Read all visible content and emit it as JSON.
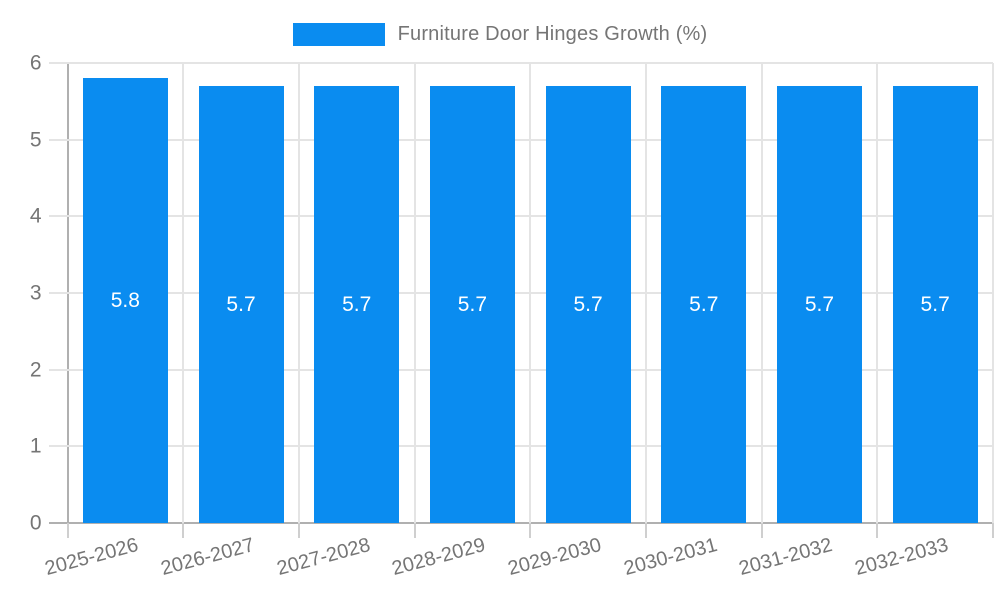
{
  "chart_data": {
    "type": "bar",
    "title": "Furniture Door Hinges Growth (%)",
    "categories": [
      "2025-2026",
      "2026-2027",
      "2027-2028",
      "2028-2029",
      "2029-2030",
      "2030-2031",
      "2031-2032",
      "2032-2033"
    ],
    "values": [
      5.8,
      5.7,
      5.7,
      5.7,
      5.7,
      5.7,
      5.7,
      5.7
    ],
    "value_labels": [
      "5.8",
      "5.7",
      "5.7",
      "5.7",
      "5.7",
      "5.7",
      "5.7",
      "5.7"
    ],
    "xlabel": "",
    "ylabel": "",
    "ylim": [
      0,
      6
    ],
    "yticks": [
      "0",
      "1",
      "2",
      "3",
      "4",
      "5",
      "6"
    ],
    "grid": true,
    "legend_position": "top-center",
    "x_label_rotation_deg": -15
  },
  "colors": {
    "bar": "#0a8cf0",
    "value_label": "#ffffff",
    "axis_text": "#757575",
    "grid_line": "#e4e4e4",
    "axis_line": "#b0b0b0",
    "tick": "#cfcfcf",
    "background": "#ffffff"
  }
}
